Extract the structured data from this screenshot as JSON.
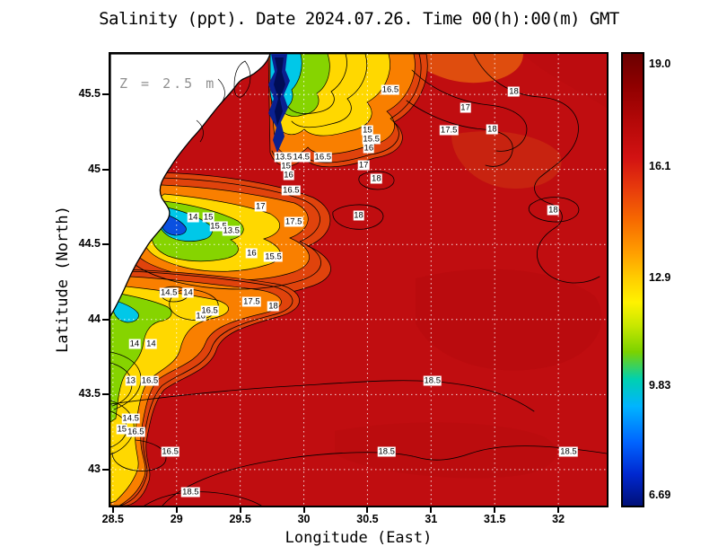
{
  "title": "Salinity (ppt). Date 2024.07.26. Time 00(h):00(m) GMT",
  "annotation": "Z = 2.5 m",
  "axes": {
    "x": {
      "label": "Longitude (East)",
      "min": 28.48,
      "max": 32.38,
      "ticks": [
        28.5,
        29,
        29.5,
        30,
        30.5,
        31,
        31.5,
        32
      ],
      "tick_labels": [
        "28.5",
        "29",
        "29.5",
        "30",
        "30.5",
        "31",
        "31.5",
        "32"
      ]
    },
    "y": {
      "label": "Latitude (North)",
      "min": 42.76,
      "max": 45.77,
      "ticks": [
        43,
        43.5,
        44,
        44.5,
        45,
        45.5
      ],
      "tick_labels": [
        "43",
        "43.5",
        "44",
        "44.5",
        "45",
        "45.5"
      ]
    }
  },
  "grid": {
    "color": "#ffffff",
    "style": "dotted",
    "x_spacing": 0.5,
    "y_spacing": 0.5
  },
  "colorbar": {
    "vtop": 19.32,
    "vbottom": 6.42,
    "ticks": [
      {
        "v": 19.0,
        "label": "19.0"
      },
      {
        "v": 16.1,
        "label": "16.1"
      },
      {
        "v": 12.9,
        "label": "12.9"
      },
      {
        "v": 9.83,
        "label": "9.83"
      },
      {
        "v": 6.69,
        "label": "6.69"
      }
    ],
    "stops": [
      [
        "0%",
        "#6b0000"
      ],
      [
        "7%",
        "#8f0000"
      ],
      [
        "15%",
        "#b40808"
      ],
      [
        "23%",
        "#d21212"
      ],
      [
        "30%",
        "#e83c0c"
      ],
      [
        "37%",
        "#f76b00"
      ],
      [
        "44%",
        "#ff9e00"
      ],
      [
        "50%",
        "#ffd000"
      ],
      [
        "55%",
        "#fff200"
      ],
      [
        "60%",
        "#c9e800"
      ],
      [
        "66%",
        "#7bd200"
      ],
      [
        "72%",
        "#00d0b0"
      ],
      [
        "78%",
        "#00b4ff"
      ],
      [
        "86%",
        "#0064ff"
      ],
      [
        "93%",
        "#0028d0"
      ],
      [
        "100%",
        "#001078"
      ]
    ]
  },
  "chart_data": {
    "type": "heatmap",
    "subtype": "filled_contour_map",
    "variable": "Salinity",
    "units": "ppt",
    "depth_annotation": "Z = 2.5 m",
    "date": "2024.07.26",
    "time": "00(h):00(m) GMT",
    "title": "Salinity (ppt). Date 2024.07.26. Time 00(h):00(m) GMT",
    "xlabel": "Longitude (East)",
    "ylabel": "Latitude (North)",
    "xlim": [
      28.48,
      32.38
    ],
    "ylim": [
      42.76,
      45.77
    ],
    "colorbar_range": [
      6.69,
      19.0
    ],
    "colorbar_ticks": [
      19.0,
      16.1,
      12.9,
      9.83,
      6.69
    ],
    "contour_levels": [
      13,
      13.5,
      14,
      14.5,
      15,
      15.5,
      16,
      16.5,
      17,
      17.5,
      18,
      18.5
    ],
    "field_description": "Open sea mostly 18-18.5 ppt (dark red). Low-salinity plumes (dark blue <7 ppt through cyan, green, yellow and orange bands) hug the western coast; land occupies the northwest corner (white with black coastline).",
    "contour_labels": [
      {
        "v": "16.5",
        "lon": 30.68,
        "lat": 45.53
      },
      {
        "v": "18",
        "lon": 31.65,
        "lat": 45.52
      },
      {
        "v": "17",
        "lon": 31.27,
        "lat": 45.41
      },
      {
        "v": "17.5",
        "lon": 31.14,
        "lat": 45.26
      },
      {
        "v": "18",
        "lon": 31.48,
        "lat": 45.27
      },
      {
        "v": "15",
        "lon": 30.5,
        "lat": 45.26
      },
      {
        "v": "15.5",
        "lon": 30.53,
        "lat": 45.2
      },
      {
        "v": "16",
        "lon": 30.51,
        "lat": 45.14
      },
      {
        "v": "13.5",
        "lon": 29.84,
        "lat": 45.08
      },
      {
        "v": "14.5",
        "lon": 29.98,
        "lat": 45.08
      },
      {
        "v": "16.5",
        "lon": 30.15,
        "lat": 45.08
      },
      {
        "v": "17",
        "lon": 30.47,
        "lat": 45.03
      },
      {
        "v": "15",
        "lon": 29.86,
        "lat": 45.02
      },
      {
        "v": "16",
        "lon": 29.88,
        "lat": 44.96
      },
      {
        "v": "18",
        "lon": 30.57,
        "lat": 44.94
      },
      {
        "v": "16.5",
        "lon": 29.9,
        "lat": 44.86
      },
      {
        "v": "17",
        "lon": 29.66,
        "lat": 44.75
      },
      {
        "v": "18",
        "lon": 31.96,
        "lat": 44.73
      },
      {
        "v": "17.5",
        "lon": 29.92,
        "lat": 44.65
      },
      {
        "v": "18",
        "lon": 30.43,
        "lat": 44.69
      },
      {
        "v": "14",
        "lon": 29.13,
        "lat": 44.68
      },
      {
        "v": "15",
        "lon": 29.25,
        "lat": 44.68
      },
      {
        "v": "15.5",
        "lon": 29.33,
        "lat": 44.62
      },
      {
        "v": "13.5",
        "lon": 29.43,
        "lat": 44.59
      },
      {
        "v": "16",
        "lon": 29.59,
        "lat": 44.44
      },
      {
        "v": "15.5",
        "lon": 29.76,
        "lat": 44.42
      },
      {
        "v": "14.5",
        "lon": 28.94,
        "lat": 44.18
      },
      {
        "v": "14",
        "lon": 29.09,
        "lat": 44.18
      },
      {
        "v": "16",
        "lon": 29.19,
        "lat": 44.02
      },
      {
        "v": "16.5",
        "lon": 29.26,
        "lat": 44.06
      },
      {
        "v": "17.5",
        "lon": 29.59,
        "lat": 44.12
      },
      {
        "v": "18",
        "lon": 29.76,
        "lat": 44.09
      },
      {
        "v": "14",
        "lon": 28.67,
        "lat": 43.84
      },
      {
        "v": "14",
        "lon": 28.8,
        "lat": 43.84
      },
      {
        "v": "13",
        "lon": 28.64,
        "lat": 43.59
      },
      {
        "v": "16.5",
        "lon": 28.79,
        "lat": 43.59
      },
      {
        "v": "18.5",
        "lon": 31.01,
        "lat": 43.59
      },
      {
        "v": "14.5",
        "lon": 28.64,
        "lat": 43.34
      },
      {
        "v": "15",
        "lon": 28.57,
        "lat": 43.27
      },
      {
        "v": "16.5",
        "lon": 28.68,
        "lat": 43.25
      },
      {
        "v": "16.5",
        "lon": 28.95,
        "lat": 43.12
      },
      {
        "v": "18.5",
        "lon": 30.65,
        "lat": 43.12
      },
      {
        "v": "18.5",
        "lon": 32.08,
        "lat": 43.12
      },
      {
        "v": "18.5",
        "lon": 29.11,
        "lat": 42.85
      }
    ]
  }
}
